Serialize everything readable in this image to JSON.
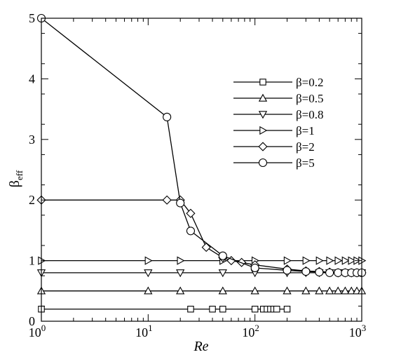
{
  "chart_data": {
    "type": "line",
    "title": "",
    "xlabel": "Re",
    "ylabel": {
      "base": "β",
      "sub": "eff"
    },
    "xscale": "log",
    "xlim": [
      1,
      1000
    ],
    "ylim": [
      0,
      5
    ],
    "grid": false,
    "legend_position": "top-right",
    "x_ticks": [
      {
        "value": 1,
        "base": "10",
        "exp": "0"
      },
      {
        "value": 10,
        "base": "10",
        "exp": "1"
      },
      {
        "value": 100,
        "base": "10",
        "exp": "2"
      },
      {
        "value": 1000,
        "base": "10",
        "exp": "3"
      }
    ],
    "y_ticks": [
      {
        "value": 0,
        "label": "0"
      },
      {
        "value": 1,
        "label": "1"
      },
      {
        "value": 2,
        "label": "2"
      },
      {
        "value": 3,
        "label": "3"
      },
      {
        "value": 4,
        "label": "4"
      },
      {
        "value": 5,
        "label": "5"
      }
    ],
    "series": [
      {
        "name": "β=0.2",
        "marker": "square",
        "x": [
          1,
          25,
          40,
          50,
          100,
          120,
          130,
          140,
          150,
          160,
          200
        ],
        "y": [
          0.2,
          0.2,
          0.2,
          0.2,
          0.2,
          0.2,
          0.2,
          0.2,
          0.2,
          0.2,
          0.2
        ]
      },
      {
        "name": "β=0.5",
        "marker": "triangle-up",
        "x": [
          1,
          10,
          20,
          50,
          100,
          200,
          300,
          400,
          500,
          600,
          700,
          800,
          900,
          1000
        ],
        "y": [
          0.5,
          0.5,
          0.5,
          0.5,
          0.5,
          0.5,
          0.5,
          0.5,
          0.5,
          0.5,
          0.5,
          0.5,
          0.5,
          0.5
        ]
      },
      {
        "name": "β=0.8",
        "marker": "triangle-down",
        "x": [
          1,
          10,
          20,
          50,
          100,
          200,
          300,
          400,
          500,
          600,
          700,
          800,
          900,
          1000
        ],
        "y": [
          0.8,
          0.8,
          0.8,
          0.8,
          0.8,
          0.8,
          0.8,
          0.8,
          0.8,
          0.8,
          0.8,
          0.8,
          0.8,
          0.8
        ]
      },
      {
        "name": "β=1",
        "marker": "triangle-right",
        "x": [
          1,
          10,
          20,
          50,
          100,
          200,
          300,
          400,
          500,
          600,
          700,
          800,
          900,
          1000
        ],
        "y": [
          1,
          1,
          1,
          1,
          1,
          1,
          1,
          1,
          1,
          1,
          1,
          1,
          1,
          1
        ]
      },
      {
        "name": "β=2",
        "marker": "diamond",
        "x": [
          1,
          15,
          20,
          25,
          35,
          50,
          60,
          75,
          100,
          200,
          300,
          400,
          500,
          600,
          700,
          800,
          900,
          1000
        ],
        "y": [
          2,
          2,
          2,
          1.78,
          1.22,
          1.05,
          1.0,
          0.97,
          0.93,
          0.86,
          0.83,
          0.82,
          0.81,
          0.8,
          0.8,
          0.8,
          0.8,
          0.8
        ]
      },
      {
        "name": "β=5",
        "marker": "circle",
        "x": [
          1,
          15,
          20,
          25,
          50,
          100,
          200,
          300,
          400,
          500,
          600,
          700,
          800,
          900,
          1000
        ],
        "y": [
          5,
          3.37,
          1.95,
          1.49,
          1.08,
          0.88,
          0.84,
          0.82,
          0.81,
          0.8,
          0.8,
          0.8,
          0.8,
          0.8,
          0.8
        ]
      }
    ]
  }
}
